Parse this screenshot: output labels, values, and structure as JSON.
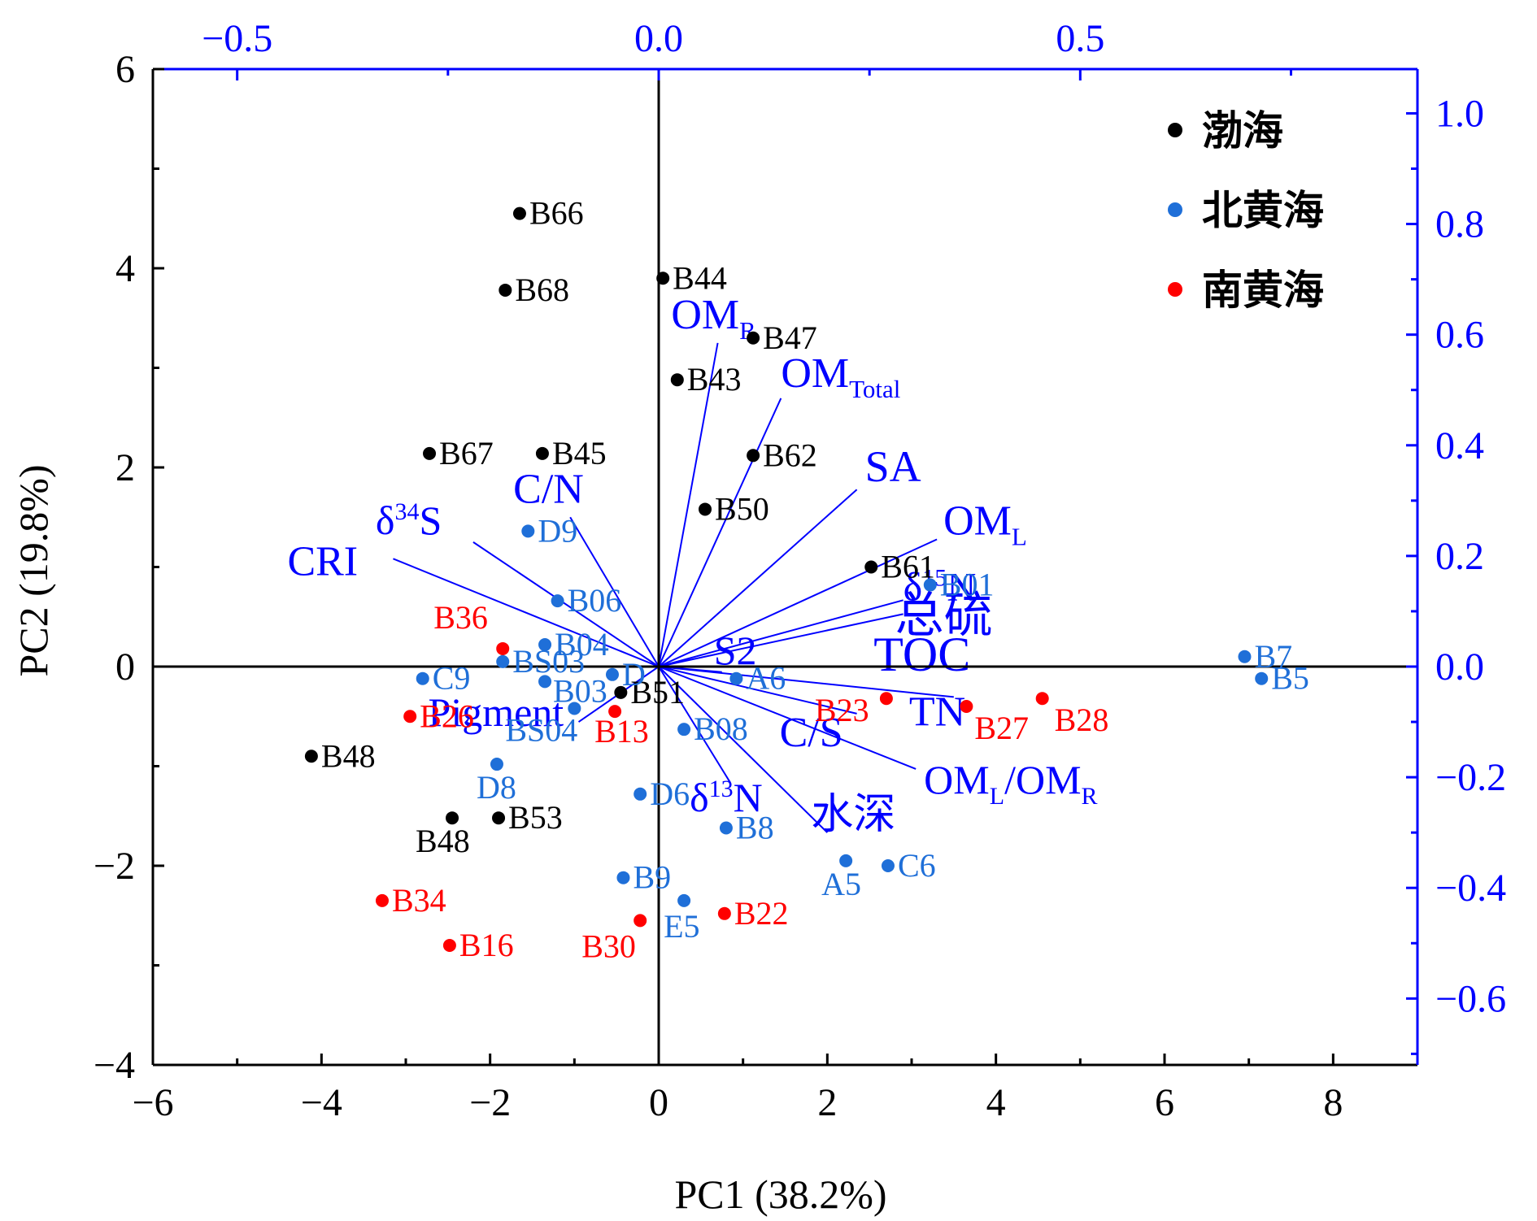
{
  "chart_data": {
    "type": "scatter",
    "title": "",
    "xlabel": "PC1 (38.2%)",
    "ylabel": "PC2 (19.8%)",
    "xlim": [
      -6,
      9
    ],
    "ylim": [
      -4,
      6
    ],
    "xticks": [
      -6,
      -4,
      -2,
      0,
      2,
      4,
      6,
      8
    ],
    "xtick_labels": [
      "−6",
      "−4",
      "−2",
      "0",
      "2",
      "4",
      "6",
      "8"
    ],
    "yticks": [
      -4,
      -2,
      0,
      2,
      4,
      6
    ],
    "ytick_labels": [
      "−4",
      "−2",
      "0",
      "2",
      "4",
      "6"
    ],
    "loading_axes": {
      "xlim": [
        -0.6,
        0.9
      ],
      "ylim": [
        -0.72,
        1.08
      ],
      "xticks": [
        -0.5,
        0.0,
        0.5
      ],
      "xtick_labels": [
        "−0.5",
        "0.0",
        "0.5"
      ],
      "yticks": [
        -0.6,
        -0.4,
        -0.2,
        0.0,
        0.2,
        0.4,
        0.6,
        0.8,
        1.0
      ],
      "ytick_labels": [
        "−0.6",
        "−0.4",
        "−0.2",
        "0.0",
        "0.2",
        "0.4",
        "0.6",
        "0.8",
        "1.0"
      ],
      "color": "#0000ff"
    },
    "grid": false,
    "legend_position": "top-right",
    "series": [
      {
        "name": "渤海",
        "color": "#000000",
        "points": [
          {
            "label": "B66",
            "x": -1.65,
            "y": 4.55
          },
          {
            "label": "B68",
            "x": -1.82,
            "y": 3.78
          },
          {
            "label": "B44",
            "x": 0.05,
            "y": 3.9
          },
          {
            "label": "B47",
            "x": 1.12,
            "y": 3.3
          },
          {
            "label": "B43",
            "x": 0.22,
            "y": 2.88
          },
          {
            "label": "B67",
            "x": -2.72,
            "y": 2.14
          },
          {
            "label": "B45",
            "x": -1.38,
            "y": 2.14
          },
          {
            "label": "B62",
            "x": 1.12,
            "y": 2.12
          },
          {
            "label": "B50",
            "x": 0.55,
            "y": 1.58
          },
          {
            "label": "B61",
            "x": 2.52,
            "y": 1.0
          },
          {
            "label": "B51",
            "x": -0.45,
            "y": -0.26
          },
          {
            "label": "B48",
            "x": -4.12,
            "y": -0.9
          },
          {
            "label": "B48",
            "x": -2.45,
            "y": -1.52
          },
          {
            "label": "B53",
            "x": -1.9,
            "y": -1.52
          }
        ]
      },
      {
        "name": "北黄海",
        "color": "#1f6fd8",
        "points": [
          {
            "label": "D9",
            "x": -1.55,
            "y": 1.36
          },
          {
            "label": "B06",
            "x": -1.2,
            "y": 0.66
          },
          {
            "label": "B04",
            "x": -1.35,
            "y": 0.22
          },
          {
            "label": "BS03",
            "x": -1.85,
            "y": 0.05
          },
          {
            "label": "B03",
            "x": -1.35,
            "y": -0.15
          },
          {
            "label": "D",
            "x": -0.55,
            "y": -0.08
          },
          {
            "label": "BS04",
            "x": -1.0,
            "y": -0.42
          },
          {
            "label": "C9",
            "x": -2.8,
            "y": -0.12
          },
          {
            "label": "D8",
            "x": -1.92,
            "y": -0.98
          },
          {
            "label": "B01",
            "x": 3.22,
            "y": 0.82
          },
          {
            "label": "A6",
            "x": 0.92,
            "y": -0.12
          },
          {
            "label": "B08",
            "x": 0.3,
            "y": -0.63
          },
          {
            "label": "D6",
            "x": -0.22,
            "y": -1.28
          },
          {
            "label": "B8",
            "x": 0.8,
            "y": -1.62
          },
          {
            "label": "B9",
            "x": -0.42,
            "y": -2.12
          },
          {
            "label": "E5",
            "x": 0.3,
            "y": -2.35
          },
          {
            "label": "A5",
            "x": 2.22,
            "y": -1.95
          },
          {
            "label": "C6",
            "x": 2.72,
            "y": -2.0
          },
          {
            "label": "B7",
            "x": 6.95,
            "y": 0.1
          },
          {
            "label": "B5",
            "x": 7.15,
            "y": -0.12
          }
        ]
      },
      {
        "name": "南黄海",
        "color": "#ff0000",
        "points": [
          {
            "label": "B36",
            "x": -1.85,
            "y": 0.18
          },
          {
            "label": "B26",
            "x": -2.95,
            "y": -0.5
          },
          {
            "label": "B13",
            "x": -0.52,
            "y": -0.45
          },
          {
            "label": "B23",
            "x": 2.7,
            "y": -0.32
          },
          {
            "label": "B27",
            "x": 3.65,
            "y": -0.4
          },
          {
            "label": "B28",
            "x": 4.55,
            "y": -0.32
          },
          {
            "label": "B34",
            "x": -3.28,
            "y": -2.35
          },
          {
            "label": "B16",
            "x": -2.48,
            "y": -2.8
          },
          {
            "label": "B30",
            "x": -0.22,
            "y": -2.55
          },
          {
            "label": "B22",
            "x": 0.78,
            "y": -2.48
          }
        ]
      }
    ],
    "loadings": [
      {
        "name": "OM_R",
        "main": "OM",
        "sub": "R",
        "x": 0.07,
        "y": 0.585
      },
      {
        "name": "OM_Total",
        "main": "OM",
        "sub": "Total",
        "x": 0.145,
        "y": 0.485
      },
      {
        "name": "SA",
        "main": "SA",
        "x": 0.235,
        "y": 0.32
      },
      {
        "name": "OM_L",
        "main": "OM",
        "sub": "L",
        "x": 0.33,
        "y": 0.23
      },
      {
        "name": "δ15N",
        "main": "δ",
        "sup": "15",
        "rest": "N",
        "x": 0.29,
        "y": 0.12
      },
      {
        "name": "总硫",
        "main": "总硫",
        "x": 0.29,
        "y": 0.095
      },
      {
        "name": "TOC",
        "main": "TOC",
        "x": 0.39,
        "y": 0.0
      },
      {
        "name": "S2",
        "main": "S2",
        "x": 0.075,
        "y": -0.01
      },
      {
        "name": "TN",
        "main": "TN",
        "x": 0.35,
        "y": -0.055
      },
      {
        "name": "C/S",
        "main": "C/S",
        "x": 0.235,
        "y": -0.085
      },
      {
        "name": "OM_L/OM_R",
        "main": "OM",
        "sub": "L",
        "mid": "/OM",
        "sub2": "R",
        "x": 0.305,
        "y": -0.185
      },
      {
        "name": "水深",
        "main": "水深",
        "x": 0.2,
        "y": -0.3
      },
      {
        "name": "δ13N",
        "main": "δ",
        "sup": "13",
        "rest": "N",
        "x": 0.085,
        "y": -0.21
      },
      {
        "name": "CRI",
        "main": "CRI",
        "x": -0.315,
        "y": 0.195
      },
      {
        "name": "δ34S",
        "main": "δ",
        "sup": "34",
        "rest": "S",
        "x": -0.22,
        "y": 0.225
      },
      {
        "name": "C/N",
        "main": "C/N",
        "x": -0.105,
        "y": 0.27
      },
      {
        "name": "Pigment",
        "main": "Pigment",
        "x": -0.095,
        "y": -0.1
      }
    ]
  }
}
